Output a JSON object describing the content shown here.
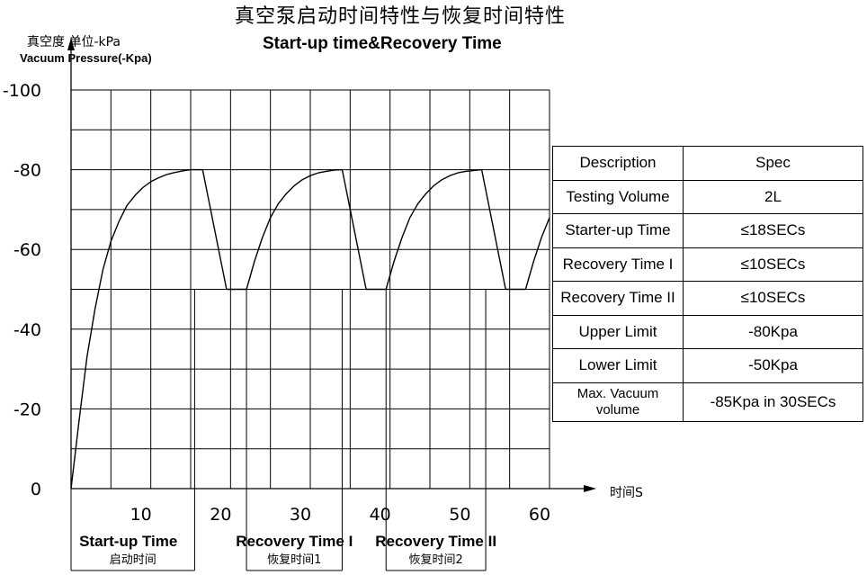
{
  "header": {
    "title_cn": "真空泵启动时间特性与恢复时间特性",
    "title_en": "Start-up time&Recovery Time"
  },
  "axes": {
    "y_label_cn": "真空度 单位-kPa",
    "y_label_en": "Vacuum Pressure(-Kpa)",
    "x_label": "时间S"
  },
  "phases": [
    {
      "label_en": "Start-up Time",
      "label_cn": "启动时间"
    },
    {
      "label_en": "Recovery Time I",
      "label_cn": "恢复时间1"
    },
    {
      "label_en": "Recovery Time II",
      "label_cn": "恢复时间2"
    }
  ],
  "spec_table": {
    "headers": [
      "Description",
      "Spec"
    ],
    "rows": [
      [
        "Testing Volume",
        "2L"
      ],
      [
        "Starter-up Time",
        "≤18SECs"
      ],
      [
        "Recovery Time I",
        "≤10SECs"
      ],
      [
        "Recovery Time II",
        "≤10SECs"
      ],
      [
        "Upper Limit",
        "-80Kpa"
      ],
      [
        "Lower Limit",
        "-50Kpa"
      ],
      [
        "Max. Vacuum volume",
        "-85Kpa in 30SECs"
      ]
    ]
  },
  "chart_data": {
    "type": "line",
    "title": "真空泵启动时间特性与恢复时间特性",
    "subtitle": "Start-up time&Recovery Time",
    "xlabel": "时间S",
    "ylabel": "真空度 单位-kPa",
    "xlim": [
      0,
      60
    ],
    "ylim": [
      0,
      100
    ],
    "grid": true,
    "x_ticks": [
      10,
      20,
      30,
      40,
      50,
      60
    ],
    "y_ticks": [
      0,
      20,
      40,
      60,
      80,
      100
    ],
    "y_tick_labels": [
      "0",
      "-20",
      "-40",
      "-60",
      "-80",
      "-100"
    ],
    "series": [
      {
        "x": [
          0,
          1,
          2,
          3,
          4,
          5,
          6,
          7,
          8,
          9,
          10,
          11,
          12,
          13,
          14,
          15,
          16.5,
          19.5,
          22,
          23,
          24,
          25,
          26,
          27,
          28,
          29,
          30,
          31,
          32,
          33,
          34,
          37,
          39.5,
          40.5,
          41.5,
          42.5,
          43.5,
          44.5,
          45.5,
          46.5,
          47.5,
          48.5,
          49.5,
          51.5,
          54.5,
          57,
          58,
          59,
          60
        ],
        "y": [
          0,
          17,
          33,
          45,
          55,
          62,
          67,
          71,
          73.5,
          75.5,
          77,
          78,
          78.8,
          79.3,
          79.7,
          80,
          80,
          50,
          50,
          57,
          63,
          68,
          71.5,
          74,
          76,
          77.5,
          78.5,
          79.2,
          79.6,
          79.9,
          80,
          50,
          50,
          57,
          63,
          68,
          71.5,
          74,
          76,
          77.5,
          78.5,
          79.2,
          79.6,
          80,
          50,
          50,
          57,
          63,
          68
        ]
      }
    ]
  }
}
